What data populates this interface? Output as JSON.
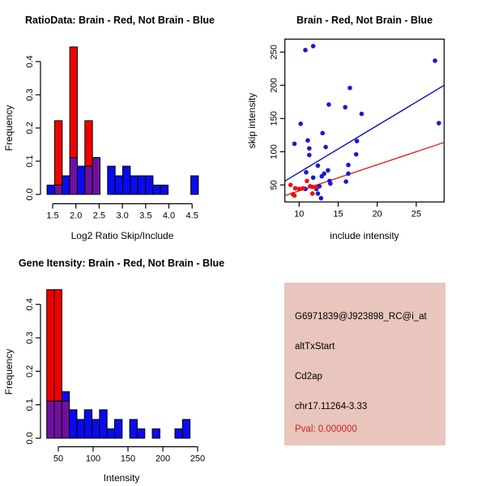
{
  "colors": {
    "hist_red": "#EE0000",
    "hist_blue": "#0A0AEE",
    "overlap_purple": "#70109F",
    "point_blue": "#1A1ACC",
    "point_red": "#EE1111",
    "line_blue": "#0000BB",
    "line_red": "#DD1515",
    "axis_black": "#000000",
    "info_panel_bg": "#E8C5BD",
    "pval_red": "#CC2222"
  },
  "info_panel": {
    "probe_id": "G6971839@J923898_RC@i_at",
    "event_type": "altTxStart",
    "gene": "Cd2ap",
    "location": "chr17.11264-3.33",
    "pval": "Pval: 0.000000"
  },
  "chart_data": [
    {
      "type": "bar",
      "title": "RatioData: Brain - Red, Not Brain - Blue",
      "xlabel": "Log2 Ratio Skip/Include",
      "ylabel": "Frequency",
      "x_tick_values": [
        1.5,
        2.0,
        2.5,
        3.0,
        3.5,
        4.0,
        4.5
      ],
      "x_tick_labels": [
        "1.5",
        "2.0",
        "2.5",
        "3.0",
        "3.5",
        "4.0",
        "4.5"
      ],
      "y_tick_values": [
        0.0,
        0.1,
        0.2,
        0.3,
        0.4
      ],
      "y_tick_labels": [
        "0.0",
        "0.1",
        "0.2",
        "0.3",
        "0.4"
      ],
      "xlim": [
        1.35,
        4.75
      ],
      "ylim": [
        0,
        0.45
      ],
      "bin_start": 1.38,
      "bin_width": 0.163,
      "series": [
        {
          "name": "Not Brain (blue)",
          "color_key": "hist_blue",
          "values": [
            0.028,
            0.028,
            0.056,
            0.111,
            0.085,
            0.085,
            0.111,
            0,
            0.085,
            0.056,
            0.085,
            0.056,
            0.056,
            0.056,
            0.028,
            0.028,
            0,
            0,
            0,
            0.056
          ]
        },
        {
          "name": "Brain (red)",
          "color_key": "hist_red",
          "values": [
            0,
            0.222,
            0,
            0.444,
            0,
            0.222,
            0.111,
            0,
            0,
            0,
            0,
            0,
            0,
            0,
            0,
            0,
            0,
            0,
            0,
            0
          ]
        }
      ]
    },
    {
      "type": "scatter",
      "title": "Brain - Red, Not Brain - Blue",
      "xlabel": "include intensity",
      "ylabel": "skip intensity",
      "x_tick_values": [
        10,
        15,
        20,
        25
      ],
      "x_tick_labels": [
        "10",
        "15",
        "20",
        "25"
      ],
      "y_tick_values": [
        50,
        100,
        150,
        200,
        250
      ],
      "y_tick_labels": [
        "50",
        "100",
        "150",
        "200",
        "250"
      ],
      "xlim": [
        8.2,
        28.6
      ],
      "ylim": [
        24,
        270
      ],
      "series": [
        {
          "name": "Not Brain (blue)",
          "color_key": "point_blue",
          "points": [
            [
              10.8,
              253
            ],
            [
              11.8,
              259
            ],
            [
              27.4,
              237
            ],
            [
              16.5,
              196
            ],
            [
              13.8,
              171
            ],
            [
              15.9,
              167
            ],
            [
              18.0,
              157
            ],
            [
              10.2,
              142
            ],
            [
              27.9,
              143
            ],
            [
              13.0,
              128
            ],
            [
              9.4,
              112
            ],
            [
              11.1,
              117
            ],
            [
              17.4,
              116
            ],
            [
              11.3,
              105
            ],
            [
              13.4,
              107
            ],
            [
              11.3,
              95
            ],
            [
              17.3,
              96
            ],
            [
              12.4,
              79
            ],
            [
              16.3,
              80
            ],
            [
              10.9,
              69
            ],
            [
              13.7,
              72
            ],
            [
              16.3,
              67
            ],
            [
              11.8,
              61
            ],
            [
              12.9,
              63
            ],
            [
              13.2,
              67
            ],
            [
              13.9,
              56
            ],
            [
              16.0,
              55
            ],
            [
              14.0,
              52
            ],
            [
              12.6,
              48
            ],
            [
              12.2,
              44
            ],
            [
              10.8,
              44
            ],
            [
              12.4,
              37
            ],
            [
              12.8,
              30
            ]
          ]
        },
        {
          "name": "Brain (red)",
          "color_key": "point_red",
          "points": [
            [
              8.9,
              50
            ],
            [
              9.5,
              45
            ],
            [
              10.0,
              44
            ],
            [
              10.5,
              45
            ],
            [
              9.2,
              36
            ],
            [
              9.4,
              34
            ],
            [
              11.0,
              56
            ],
            [
              11.4,
              48
            ],
            [
              11.7,
              47
            ],
            [
              12.1,
              47
            ],
            [
              11.7,
              37
            ]
          ]
        }
      ],
      "regression_lines": [
        {
          "name": "Not Brain fit",
          "color_key": "line_blue",
          "x1": 8.2,
          "y1": 56,
          "x2": 28.6,
          "y2": 200
        },
        {
          "name": "Brain fit",
          "color_key": "line_red",
          "x1": 8.2,
          "y1": 34,
          "x2": 28.6,
          "y2": 114
        }
      ]
    },
    {
      "type": "bar",
      "title": "Gene Itensity: Brain - Red, Not Brain - Blue",
      "xlabel": "Intensity",
      "ylabel": "Frequency",
      "x_tick_values": [
        50,
        100,
        150,
        200,
        250
      ],
      "x_tick_labels": [
        "50",
        "100",
        "150",
        "200",
        "250"
      ],
      "y_tick_values": [
        0.0,
        0.1,
        0.2,
        0.3,
        0.4
      ],
      "y_tick_labels": [
        "0.0",
        "0.1",
        "0.2",
        "0.3",
        "0.4"
      ],
      "xlim": [
        25,
        260
      ],
      "ylim": [
        0,
        0.45
      ],
      "bin_start": 33.4,
      "bin_width": 10.83,
      "series": [
        {
          "name": "Not Brain (blue)",
          "color_key": "hist_blue",
          "values": [
            0.111,
            0.111,
            0.139,
            0.085,
            0.056,
            0.085,
            0.056,
            0.085,
            0.028,
            0.056,
            0,
            0.056,
            0.028,
            0,
            0.028,
            0,
            0,
            0.028,
            0.056
          ]
        },
        {
          "name": "Brain (red)",
          "color_key": "hist_red",
          "values": [
            0.444,
            0.444,
            0.111,
            0,
            0,
            0,
            0,
            0,
            0,
            0,
            0,
            0,
            0,
            0,
            0,
            0,
            0,
            0,
            0
          ]
        }
      ]
    }
  ]
}
